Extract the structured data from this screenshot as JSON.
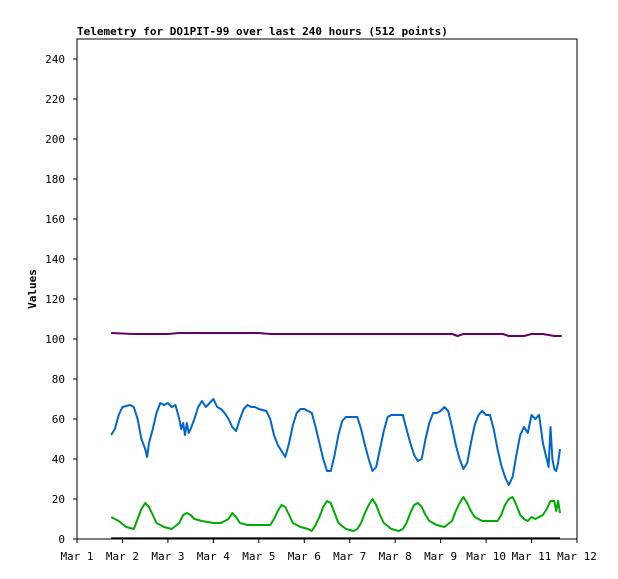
{
  "chart_data": {
    "type": "line",
    "title": "Telemetry for DO1PIT-99 over last 240 hours (512 points)",
    "xlabel": "",
    "ylabel": "Values",
    "xlim": [
      "Mar 1",
      "Mar 12"
    ],
    "ylim": [
      0,
      250
    ],
    "x_ticks": [
      "Mar 1",
      "Mar 2",
      "Mar 3",
      "Mar 4",
      "Mar 5",
      "Mar 6",
      "Mar 7",
      "Mar 8",
      "Mar 9",
      "Mar 10",
      "Mar 11",
      "Mar 12"
    ],
    "y_ticks": [
      0,
      20,
      40,
      60,
      80,
      100,
      120,
      140,
      160,
      180,
      200,
      220,
      240
    ],
    "grid": false,
    "legend": "none",
    "series": [
      {
        "color": "#660066",
        "points": [
          [
            "Mar 1 18:00",
            103
          ],
          [
            "Mar 2 06:00",
            102.5
          ],
          [
            "Mar 2 12:00",
            102.5
          ],
          [
            "Mar 3",
            102.5
          ],
          [
            "Mar 3 06:00",
            103
          ],
          [
            "Mar 3 12:00",
            103
          ],
          [
            "Mar 4",
            103
          ],
          [
            "Mar 4 12:00",
            103
          ],
          [
            "Mar 5",
            103
          ],
          [
            "Mar 5 06:00",
            102.5
          ],
          [
            "Mar 5 12:00",
            102.5
          ],
          [
            "Mar 6",
            102.5
          ],
          [
            "Mar 6 12:00",
            102.5
          ],
          [
            "Mar 7",
            102.5
          ],
          [
            "Mar 7 12:00",
            102.5
          ],
          [
            "Mar 8",
            102.5
          ],
          [
            "Mar 8 12:00",
            102.5
          ],
          [
            "Mar 9",
            102.5
          ],
          [
            "Mar 9 06:00",
            102.5
          ],
          [
            "Mar 9 09:00",
            101.5
          ],
          [
            "Mar 9 12:00",
            102.5
          ],
          [
            "Mar 10",
            102.5
          ],
          [
            "Mar 10 09:00",
            102.5
          ],
          [
            "Mar 10 12:00",
            101.5
          ],
          [
            "Mar 10 20:00",
            101.5
          ],
          [
            "Mar 11",
            102.5
          ],
          [
            "Mar 11 06:00",
            102.5
          ],
          [
            "Mar 11 12:00",
            101.5
          ],
          [
            "Mar 11 16:00",
            101.5
          ]
        ]
      },
      {
        "color": "#0066cc",
        "points": [
          [
            "Mar 1 18:00",
            52
          ],
          [
            "Mar 1 20:00",
            55
          ],
          [
            "Mar 1 22:00",
            62
          ],
          [
            "Mar 2 00:00",
            66
          ],
          [
            "Mar 2 04:00",
            67
          ],
          [
            "Mar 2 06:00",
            66
          ],
          [
            "Mar 2 08:00",
            60
          ],
          [
            "Mar 2 10:00",
            50
          ],
          [
            "Mar 2 12:00",
            45
          ],
          [
            "Mar 2 13:00",
            41
          ],
          [
            "Mar 2 14:00",
            48
          ],
          [
            "Mar 2 16:00",
            55
          ],
          [
            "Mar 2 18:00",
            63
          ],
          [
            "Mar 2 20:00",
            68
          ],
          [
            "Mar 2 22:00",
            67
          ],
          [
            "Mar 3 00:00",
            68
          ],
          [
            "Mar 3 02:00",
            66
          ],
          [
            "Mar 3 04:00",
            67
          ],
          [
            "Mar 3 06:00",
            60
          ],
          [
            "Mar 3 07:00",
            55
          ],
          [
            "Mar 3 08:00",
            58
          ],
          [
            "Mar 3 09:00",
            52
          ],
          [
            "Mar 3 10:00",
            58
          ],
          [
            "Mar 3 11:00",
            53
          ],
          [
            "Mar 3 12:00",
            55
          ],
          [
            "Mar 3 14:00",
            60
          ],
          [
            "Mar 3 16:00",
            66
          ],
          [
            "Mar 3 18:00",
            69
          ],
          [
            "Mar 3 20:00",
            66
          ],
          [
            "Mar 3 22:00",
            68
          ],
          [
            "Mar 4 00:00",
            70
          ],
          [
            "Mar 4 02:00",
            66
          ],
          [
            "Mar 4 04:00",
            65
          ],
          [
            "Mar 4 06:00",
            63
          ],
          [
            "Mar 4 08:00",
            60
          ],
          [
            "Mar 4 10:00",
            56
          ],
          [
            "Mar 4 12:00",
            54
          ],
          [
            "Mar 4 14:00",
            60
          ],
          [
            "Mar 4 16:00",
            65
          ],
          [
            "Mar 4 18:00",
            67
          ],
          [
            "Mar 4 20:00",
            66
          ],
          [
            "Mar 4 22:00",
            66
          ],
          [
            "Mar 5 00:00",
            65
          ],
          [
            "Mar 5 04:00",
            64
          ],
          [
            "Mar 5 06:00",
            60
          ],
          [
            "Mar 5 08:00",
            52
          ],
          [
            "Mar 5 10:00",
            47
          ],
          [
            "Mar 5 12:00",
            44
          ],
          [
            "Mar 5 14:00",
            41
          ],
          [
            "Mar 5 16:00",
            48
          ],
          [
            "Mar 5 18:00",
            57
          ],
          [
            "Mar 5 20:00",
            63
          ],
          [
            "Mar 5 22:00",
            65
          ],
          [
            "Mar 6 00:00",
            65
          ],
          [
            "Mar 6 04:00",
            63
          ],
          [
            "Mar 6 06:00",
            56
          ],
          [
            "Mar 6 08:00",
            48
          ],
          [
            "Mar 6 10:00",
            40
          ],
          [
            "Mar 6 12:00",
            34
          ],
          [
            "Mar 6 14:00",
            34
          ],
          [
            "Mar 6 16:00",
            42
          ],
          [
            "Mar 6 18:00",
            52
          ],
          [
            "Mar 6 20:00",
            59
          ],
          [
            "Mar 6 22:00",
            61
          ],
          [
            "Mar 7 00:00",
            61
          ],
          [
            "Mar 7 04:00",
            61
          ],
          [
            "Mar 7 06:00",
            55
          ],
          [
            "Mar 7 08:00",
            47
          ],
          [
            "Mar 7 10:00",
            40
          ],
          [
            "Mar 7 12:00",
            34
          ],
          [
            "Mar 7 14:00",
            36
          ],
          [
            "Mar 7 16:00",
            45
          ],
          [
            "Mar 7 18:00",
            54
          ],
          [
            "Mar 7 20:00",
            61
          ],
          [
            "Mar 7 22:00",
            62
          ],
          [
            "Mar 8 00:00",
            62
          ],
          [
            "Mar 8 04:00",
            62
          ],
          [
            "Mar 8 06:00",
            55
          ],
          [
            "Mar 8 08:00",
            48
          ],
          [
            "Mar 8 10:00",
            42
          ],
          [
            "Mar 8 12:00",
            39
          ],
          [
            "Mar 8 14:00",
            40
          ],
          [
            "Mar 8 16:00",
            50
          ],
          [
            "Mar 8 18:00",
            58
          ],
          [
            "Mar 8 20:00",
            63
          ],
          [
            "Mar 8 22:00",
            63
          ],
          [
            "Mar 9 00:00",
            64
          ],
          [
            "Mar 9 02:00",
            66
          ],
          [
            "Mar 9 04:00",
            64
          ],
          [
            "Mar 9 06:00",
            56
          ],
          [
            "Mar 9 08:00",
            47
          ],
          [
            "Mar 9 10:00",
            40
          ],
          [
            "Mar 9 12:00",
            35
          ],
          [
            "Mar 9 14:00",
            38
          ],
          [
            "Mar 9 16:00",
            48
          ],
          [
            "Mar 9 18:00",
            57
          ],
          [
            "Mar 9 20:00",
            62
          ],
          [
            "Mar 9 22:00",
            64
          ],
          [
            "Mar 10 00:00",
            62
          ],
          [
            "Mar 10 02:00",
            62
          ],
          [
            "Mar 10 04:00",
            55
          ],
          [
            "Mar 10 06:00",
            45
          ],
          [
            "Mar 10 08:00",
            37
          ],
          [
            "Mar 10 10:00",
            31
          ],
          [
            "Mar 10 12:00",
            27
          ],
          [
            "Mar 10 14:00",
            31
          ],
          [
            "Mar 10 16:00",
            42
          ],
          [
            "Mar 10 18:00",
            52
          ],
          [
            "Mar 10 20:00",
            56
          ],
          [
            "Mar 10 22:00",
            53
          ],
          [
            "Mar 11 00:00",
            62
          ],
          [
            "Mar 11 02:00",
            60
          ],
          [
            "Mar 11 04:00",
            62
          ],
          [
            "Mar 11 06:00",
            48
          ],
          [
            "Mar 11 08:00",
            40
          ],
          [
            "Mar 11 09:00",
            36
          ],
          [
            "Mar 11 10:00",
            56
          ],
          [
            "Mar 11 11:00",
            40
          ],
          [
            "Mar 11 12:00",
            35
          ],
          [
            "Mar 11 13:00",
            34
          ],
          [
            "Mar 11 14:00",
            38
          ],
          [
            "Mar 11 15:00",
            45
          ]
        ]
      },
      {
        "color": "#00aa00",
        "points": [
          [
            "Mar 1 18:00",
            11
          ],
          [
            "Mar 1 22:00",
            9
          ],
          [
            "Mar 2 02:00",
            6
          ],
          [
            "Mar 2 06:00",
            5
          ],
          [
            "Mar 2 08:00",
            10
          ],
          [
            "Mar 2 10:00",
            15
          ],
          [
            "Mar 2 12:00",
            18
          ],
          [
            "Mar 2 14:00",
            16
          ],
          [
            "Mar 2 16:00",
            12
          ],
          [
            "Mar 2 18:00",
            8
          ],
          [
            "Mar 2 22:00",
            6
          ],
          [
            "Mar 3 02:00",
            5
          ],
          [
            "Mar 3 06:00",
            8
          ],
          [
            "Mar 3 08:00",
            12
          ],
          [
            "Mar 3 10:00",
            13
          ],
          [
            "Mar 3 12:00",
            12
          ],
          [
            "Mar 3 14:00",
            10
          ],
          [
            "Mar 3 18:00",
            9
          ],
          [
            "Mar 4 00:00",
            8
          ],
          [
            "Mar 4 04:00",
            8
          ],
          [
            "Mar 4 08:00",
            10
          ],
          [
            "Mar 4 10:00",
            13
          ],
          [
            "Mar 4 12:00",
            11
          ],
          [
            "Mar 4 14:00",
            8
          ],
          [
            "Mar 4 18:00",
            7
          ],
          [
            "Mar 5 00:00",
            7
          ],
          [
            "Mar 5 06:00",
            7
          ],
          [
            "Mar 5 08:00",
            10
          ],
          [
            "Mar 5 10:00",
            14
          ],
          [
            "Mar 5 12:00",
            17
          ],
          [
            "Mar 5 14:00",
            16
          ],
          [
            "Mar 5 16:00",
            12
          ],
          [
            "Mar 5 18:00",
            8
          ],
          [
            "Mar 5 22:00",
            6
          ],
          [
            "Mar 6 02:00",
            5
          ],
          [
            "Mar 6 04:00",
            4
          ],
          [
            "Mar 6 06:00",
            7
          ],
          [
            "Mar 6 08:00",
            11
          ],
          [
            "Mar 6 10:00",
            16
          ],
          [
            "Mar 6 12:00",
            19
          ],
          [
            "Mar 6 14:00",
            18
          ],
          [
            "Mar 6 16:00",
            13
          ],
          [
            "Mar 6 18:00",
            8
          ],
          [
            "Mar 6 22:00",
            5
          ],
          [
            "Mar 7 02:00",
            4
          ],
          [
            "Mar 7 04:00",
            5
          ],
          [
            "Mar 7 06:00",
            8
          ],
          [
            "Mar 7 08:00",
            13
          ],
          [
            "Mar 7 10:00",
            17
          ],
          [
            "Mar 7 12:00",
            20
          ],
          [
            "Mar 7 14:00",
            17
          ],
          [
            "Mar 7 16:00",
            12
          ],
          [
            "Mar 7 18:00",
            8
          ],
          [
            "Mar 7 22:00",
            5
          ],
          [
            "Mar 8 02:00",
            4
          ],
          [
            "Mar 8 04:00",
            5
          ],
          [
            "Mar 8 06:00",
            8
          ],
          [
            "Mar 8 08:00",
            13
          ],
          [
            "Mar 8 10:00",
            17
          ],
          [
            "Mar 8 12:00",
            18
          ],
          [
            "Mar 8 14:00",
            16
          ],
          [
            "Mar 8 16:00",
            12
          ],
          [
            "Mar 8 18:00",
            9
          ],
          [
            "Mar 8 22:00",
            7
          ],
          [
            "Mar 9 02:00",
            6
          ],
          [
            "Mar 9 06:00",
            9
          ],
          [
            "Mar 9 08:00",
            14
          ],
          [
            "Mar 9 10:00",
            18
          ],
          [
            "Mar 9 12:00",
            21
          ],
          [
            "Mar 9 14:00",
            18
          ],
          [
            "Mar 9 16:00",
            14
          ],
          [
            "Mar 9 18:00",
            11
          ],
          [
            "Mar 9 22:00",
            9
          ],
          [
            "Mar 10 02:00",
            9
          ],
          [
            "Mar 10 06:00",
            9
          ],
          [
            "Mar 10 08:00",
            12
          ],
          [
            "Mar 10 10:00",
            17
          ],
          [
            "Mar 10 12:00",
            20
          ],
          [
            "Mar 10 14:00",
            21
          ],
          [
            "Mar 10 16:00",
            17
          ],
          [
            "Mar 10 18:00",
            12
          ],
          [
            "Mar 10 20:00",
            10
          ],
          [
            "Mar 10 22:00",
            9
          ],
          [
            "Mar 11 00:00",
            11
          ],
          [
            "Mar 11 02:00",
            10
          ],
          [
            "Mar 11 04:00",
            11
          ],
          [
            "Mar 11 06:00",
            12
          ],
          [
            "Mar 11 08:00",
            15
          ],
          [
            "Mar 11 10:00",
            19
          ],
          [
            "Mar 11 12:00",
            19
          ],
          [
            "Mar 11 13:00",
            14
          ],
          [
            "Mar 11 14:00",
            19
          ],
          [
            "Mar 11 15:00",
            13
          ]
        ]
      },
      {
        "color": "#000000",
        "points": [
          [
            "Mar 1 18:00",
            0.3
          ],
          [
            "Mar 11 15:00",
            0.3
          ]
        ]
      }
    ]
  }
}
